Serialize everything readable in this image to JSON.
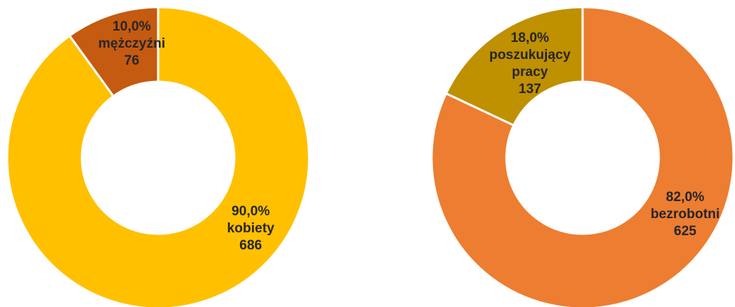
{
  "chart_data": [
    {
      "type": "donut",
      "categories": [
        "kobiety",
        "mężczyźni"
      ],
      "values": [
        686,
        76
      ],
      "percent_labels": [
        "90,0%",
        "10,0%"
      ],
      "colors": [
        "#FFC000",
        "#C55A11"
      ]
    },
    {
      "type": "donut",
      "categories": [
        "bezrobotni",
        "poszukujący pracy"
      ],
      "values": [
        625,
        137
      ],
      "percent_labels": [
        "82,0%",
        "18,0%"
      ],
      "colors": [
        "#ED7D31",
        "#BF9000"
      ]
    }
  ]
}
